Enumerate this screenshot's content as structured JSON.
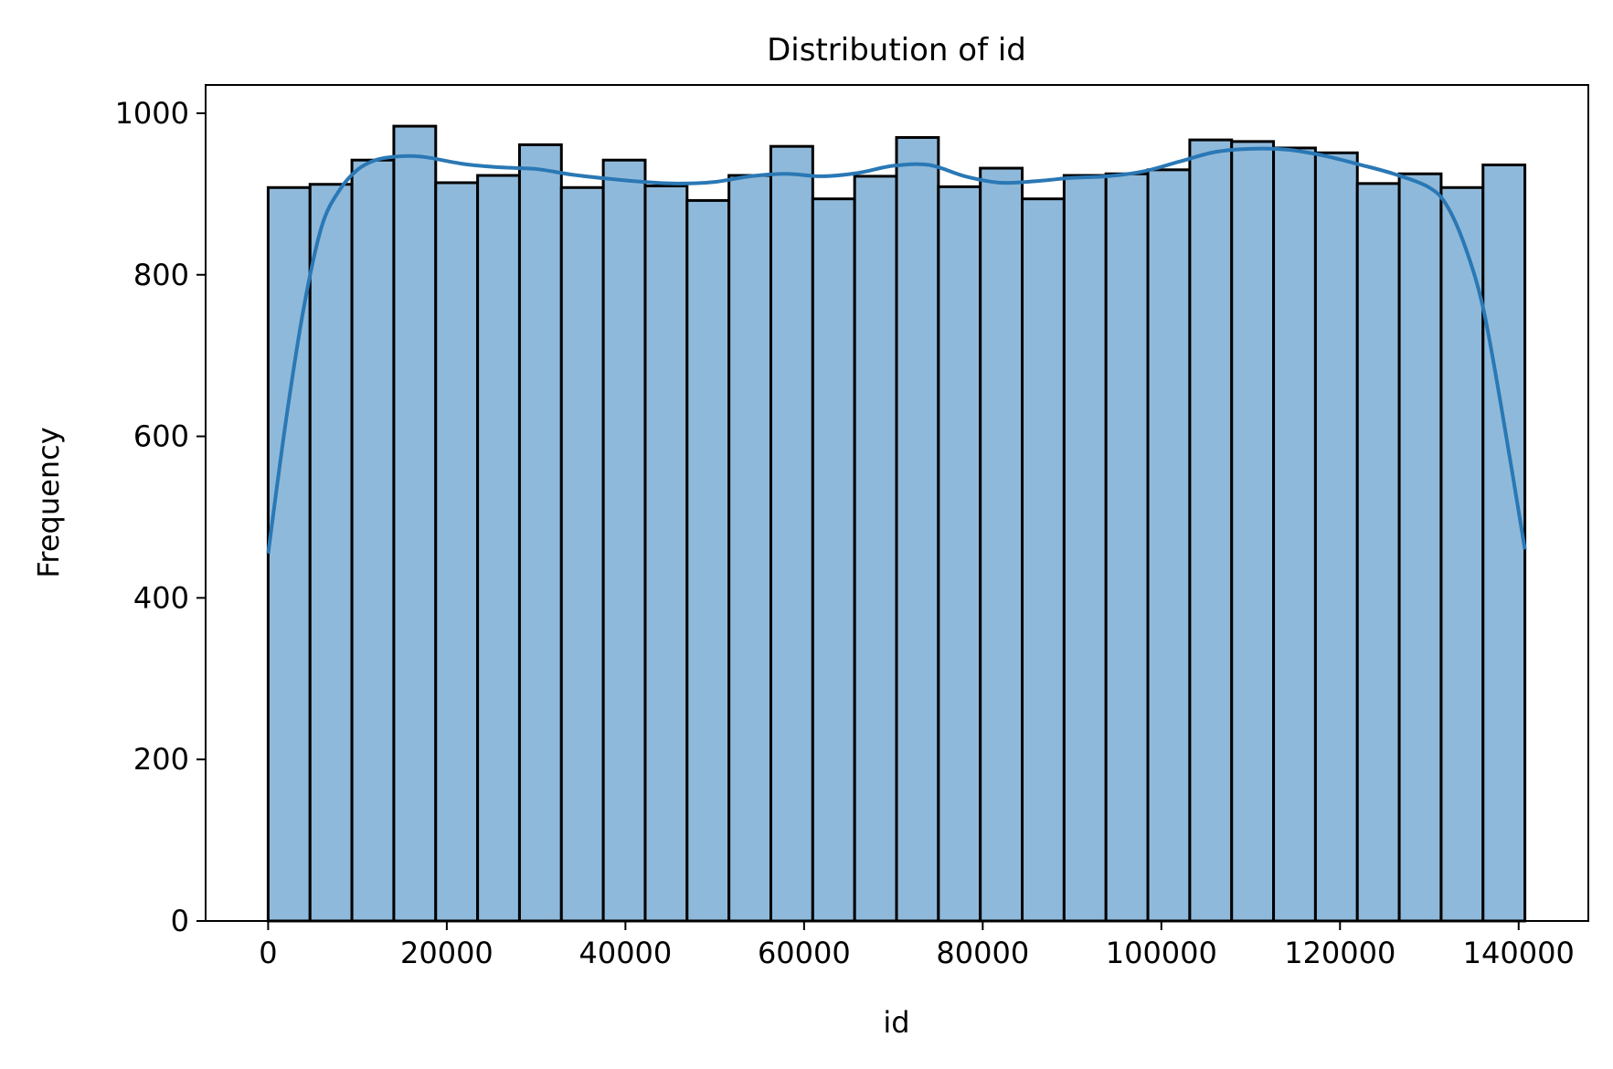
{
  "chart_data": {
    "type": "bar",
    "title": "Distribution of id",
    "xlabel": "id",
    "ylabel": "Frequency",
    "xlim": [
      -7000,
      147800
    ],
    "ylim": [
      0,
      1035
    ],
    "x_ticks": [
      0,
      20000,
      40000,
      60000,
      80000,
      100000,
      120000,
      140000
    ],
    "y_ticks": [
      0,
      200,
      400,
      600,
      800,
      1000
    ],
    "grid": false,
    "bin_start": 0,
    "bin_end": 140700,
    "values": [
      908,
      912,
      942,
      984,
      914,
      923,
      961,
      908,
      942,
      910,
      892,
      923,
      959,
      894,
      922,
      970,
      909,
      932,
      894,
      923,
      925,
      930,
      967,
      965,
      957,
      951,
      913,
      925,
      908,
      936
    ],
    "bar_color": "#8fb9da",
    "edge_color": "#000000",
    "kde": {
      "color": "#2a78b5",
      "x": [
        0,
        2000,
        4000,
        6000,
        8000,
        10000,
        12000,
        14000,
        16000,
        18000,
        22000,
        26000,
        30000,
        34000,
        38000,
        42000,
        46000,
        50000,
        54000,
        58000,
        62000,
        66000,
        70000,
        74000,
        78000,
        82000,
        86000,
        90000,
        94000,
        98000,
        102000,
        106000,
        110000,
        114000,
        118000,
        122000,
        126000,
        130000,
        132000,
        134000,
        136000,
        138000,
        140700
      ],
      "y": [
        455,
        620,
        760,
        860,
        905,
        930,
        942,
        946,
        947,
        945,
        937,
        933,
        931,
        924,
        919,
        915,
        913,
        915,
        922,
        925,
        922,
        926,
        935,
        936,
        922,
        914,
        916,
        920,
        922,
        928,
        940,
        952,
        956,
        955,
        948,
        937,
        925,
        908,
        885,
        835,
        760,
        640,
        460
      ]
    }
  }
}
